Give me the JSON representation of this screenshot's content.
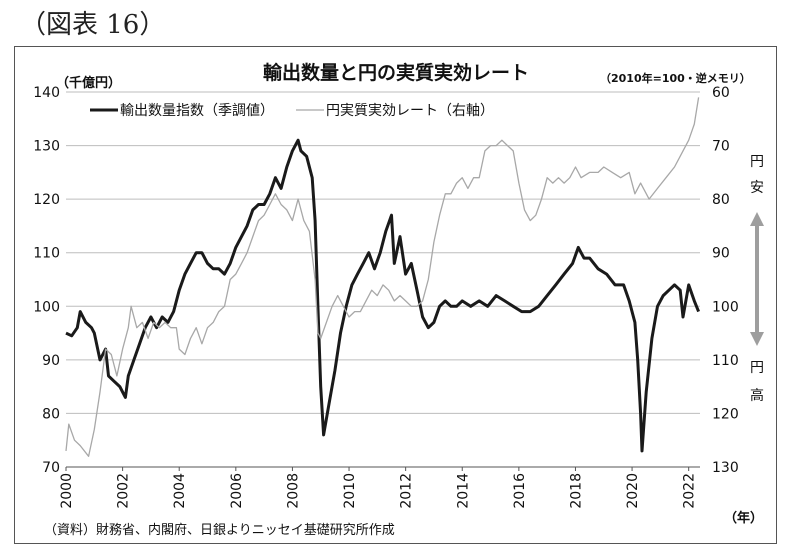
{
  "figure_label": "（図表 16）",
  "source_note": "（資料）財務省、内閣府、日銀よりニッセイ基礎研究所作成",
  "colors": {
    "exports": "#1a1a1a",
    "yen": "#a8a8a8",
    "grid": "#bdbdbd",
    "arrow": "#9e9e9e"
  },
  "chart_data": {
    "type": "line",
    "title": "輸出数量と円の実質実効レート",
    "left_axis_label": "（千億円）",
    "right_axis_label": "（2010年=100・逆メモリ）",
    "x_axis_label": "（年）",
    "xlim": [
      2000,
      2022.4
    ],
    "ylim_left": [
      70,
      140
    ],
    "ylim_right_inverted": [
      60,
      130
    ],
    "yticks_left": [
      "70",
      "80",
      "90",
      "100",
      "110",
      "120",
      "130",
      "140"
    ],
    "yticks_right": [
      "60",
      "70",
      "80",
      "90",
      "100",
      "110",
      "120",
      "130"
    ],
    "xticks": [
      "2000",
      "2002",
      "2004",
      "2006",
      "2008",
      "2010",
      "2012",
      "2014",
      "2016",
      "2018",
      "2020",
      "2022"
    ],
    "annotation_top": "円安",
    "annotation_bottom": "円高",
    "grid": true,
    "legend_placement": "top-left",
    "series": [
      {
        "name": "輸出数量指数（季調値）",
        "axis": "left",
        "points": [
          [
            2000.0,
            95
          ],
          [
            2000.2,
            94.5
          ],
          [
            2000.4,
            96
          ],
          [
            2000.5,
            99
          ],
          [
            2000.7,
            97
          ],
          [
            2000.9,
            96
          ],
          [
            2001.0,
            95
          ],
          [
            2001.2,
            90
          ],
          [
            2001.4,
            92
          ],
          [
            2001.5,
            87
          ],
          [
            2001.7,
            86
          ],
          [
            2001.9,
            85
          ],
          [
            2002.0,
            84
          ],
          [
            2002.1,
            83
          ],
          [
            2002.2,
            87
          ],
          [
            2002.4,
            90
          ],
          [
            2002.6,
            93
          ],
          [
            2002.8,
            96
          ],
          [
            2003.0,
            98
          ],
          [
            2003.2,
            96
          ],
          [
            2003.4,
            98
          ],
          [
            2003.6,
            97
          ],
          [
            2003.8,
            99
          ],
          [
            2004.0,
            103
          ],
          [
            2004.2,
            106
          ],
          [
            2004.4,
            108
          ],
          [
            2004.6,
            110
          ],
          [
            2004.8,
            110
          ],
          [
            2005.0,
            108
          ],
          [
            2005.2,
            107
          ],
          [
            2005.4,
            107
          ],
          [
            2005.6,
            106
          ],
          [
            2005.8,
            108
          ],
          [
            2006.0,
            111
          ],
          [
            2006.2,
            113
          ],
          [
            2006.4,
            115
          ],
          [
            2006.6,
            118
          ],
          [
            2006.8,
            119
          ],
          [
            2007.0,
            119
          ],
          [
            2007.2,
            121
          ],
          [
            2007.4,
            124
          ],
          [
            2007.6,
            122
          ],
          [
            2007.8,
            126
          ],
          [
            2008.0,
            129
          ],
          [
            2008.2,
            131
          ],
          [
            2008.3,
            129
          ],
          [
            2008.5,
            128
          ],
          [
            2008.7,
            124
          ],
          [
            2008.8,
            116
          ],
          [
            2008.9,
            100
          ],
          [
            2009.0,
            85
          ],
          [
            2009.1,
            76
          ],
          [
            2009.3,
            82
          ],
          [
            2009.5,
            88
          ],
          [
            2009.7,
            95
          ],
          [
            2009.9,
            100
          ],
          [
            2010.1,
            104
          ],
          [
            2010.3,
            106
          ],
          [
            2010.5,
            108
          ],
          [
            2010.7,
            110
          ],
          [
            2010.9,
            107
          ],
          [
            2011.1,
            110
          ],
          [
            2011.3,
            114
          ],
          [
            2011.5,
            117
          ],
          [
            2011.6,
            108
          ],
          [
            2011.8,
            113
          ],
          [
            2012.0,
            106
          ],
          [
            2012.2,
            108
          ],
          [
            2012.4,
            103
          ],
          [
            2012.6,
            98
          ],
          [
            2012.8,
            96
          ],
          [
            2013.0,
            97
          ],
          [
            2013.2,
            100
          ],
          [
            2013.4,
            101
          ],
          [
            2013.6,
            100
          ],
          [
            2013.8,
            100
          ],
          [
            2014.0,
            101
          ],
          [
            2014.3,
            100
          ],
          [
            2014.6,
            101
          ],
          [
            2014.9,
            100
          ],
          [
            2015.2,
            102
          ],
          [
            2015.5,
            101
          ],
          [
            2015.8,
            100
          ],
          [
            2016.1,
            99
          ],
          [
            2016.4,
            99
          ],
          [
            2016.7,
            100
          ],
          [
            2017.0,
            102
          ],
          [
            2017.3,
            104
          ],
          [
            2017.6,
            106
          ],
          [
            2017.9,
            108
          ],
          [
            2018.1,
            111
          ],
          [
            2018.3,
            109
          ],
          [
            2018.5,
            109
          ],
          [
            2018.8,
            107
          ],
          [
            2019.1,
            106
          ],
          [
            2019.4,
            104
          ],
          [
            2019.7,
            104
          ],
          [
            2019.9,
            101
          ],
          [
            2020.1,
            97
          ],
          [
            2020.2,
            90
          ],
          [
            2020.3,
            80
          ],
          [
            2020.35,
            73
          ],
          [
            2020.5,
            84
          ],
          [
            2020.7,
            94
          ],
          [
            2020.9,
            100
          ],
          [
            2021.1,
            102
          ],
          [
            2021.3,
            103
          ],
          [
            2021.5,
            104
          ],
          [
            2021.7,
            103
          ],
          [
            2021.8,
            98
          ],
          [
            2022.0,
            104
          ],
          [
            2022.2,
            101
          ],
          [
            2022.35,
            99
          ]
        ]
      },
      {
        "name": "円実質実効レート（右軸）",
        "axis": "right",
        "points": [
          [
            2000.0,
            127
          ],
          [
            2000.1,
            122
          ],
          [
            2000.3,
            125
          ],
          [
            2000.5,
            126
          ],
          [
            2000.8,
            128
          ],
          [
            2001.0,
            123
          ],
          [
            2001.2,
            116
          ],
          [
            2001.4,
            108
          ],
          [
            2001.6,
            109
          ],
          [
            2001.8,
            113
          ],
          [
            2002.0,
            108
          ],
          [
            2002.2,
            104
          ],
          [
            2002.3,
            100
          ],
          [
            2002.5,
            104
          ],
          [
            2002.7,
            103
          ],
          [
            2002.9,
            106
          ],
          [
            2003.1,
            103
          ],
          [
            2003.3,
            104
          ],
          [
            2003.5,
            103
          ],
          [
            2003.7,
            104
          ],
          [
            2003.9,
            104
          ],
          [
            2004.0,
            108
          ],
          [
            2004.2,
            109
          ],
          [
            2004.4,
            106
          ],
          [
            2004.6,
            104
          ],
          [
            2004.8,
            107
          ],
          [
            2005.0,
            104
          ],
          [
            2005.2,
            103
          ],
          [
            2005.4,
            101
          ],
          [
            2005.6,
            100
          ],
          [
            2005.8,
            95
          ],
          [
            2006.0,
            94
          ],
          [
            2006.2,
            92
          ],
          [
            2006.4,
            90
          ],
          [
            2006.6,
            87
          ],
          [
            2006.8,
            84
          ],
          [
            2007.0,
            83
          ],
          [
            2007.2,
            81
          ],
          [
            2007.4,
            79
          ],
          [
            2007.6,
            81
          ],
          [
            2007.8,
            82
          ],
          [
            2008.0,
            84
          ],
          [
            2008.2,
            80
          ],
          [
            2008.4,
            84
          ],
          [
            2008.6,
            86
          ],
          [
            2008.8,
            95
          ],
          [
            2008.9,
            105
          ],
          [
            2009.0,
            106
          ],
          [
            2009.2,
            103
          ],
          [
            2009.4,
            100
          ],
          [
            2009.6,
            98
          ],
          [
            2009.8,
            100
          ],
          [
            2010.0,
            102
          ],
          [
            2010.2,
            101
          ],
          [
            2010.4,
            101
          ],
          [
            2010.6,
            99
          ],
          [
            2010.8,
            97
          ],
          [
            2011.0,
            98
          ],
          [
            2011.2,
            96
          ],
          [
            2011.4,
            97
          ],
          [
            2011.6,
            99
          ],
          [
            2011.8,
            98
          ],
          [
            2012.0,
            99
          ],
          [
            2012.2,
            100
          ],
          [
            2012.4,
            100
          ],
          [
            2012.6,
            99
          ],
          [
            2012.8,
            95
          ],
          [
            2013.0,
            88
          ],
          [
            2013.2,
            83
          ],
          [
            2013.4,
            79
          ],
          [
            2013.6,
            79
          ],
          [
            2013.8,
            77
          ],
          [
            2014.0,
            76
          ],
          [
            2014.2,
            78
          ],
          [
            2014.4,
            76
          ],
          [
            2014.6,
            76
          ],
          [
            2014.8,
            71
          ],
          [
            2015.0,
            70
          ],
          [
            2015.2,
            70
          ],
          [
            2015.4,
            69
          ],
          [
            2015.6,
            70
          ],
          [
            2015.8,
            71
          ],
          [
            2016.0,
            77
          ],
          [
            2016.2,
            82
          ],
          [
            2016.4,
            84
          ],
          [
            2016.6,
            83
          ],
          [
            2016.8,
            80
          ],
          [
            2017.0,
            76
          ],
          [
            2017.2,
            77
          ],
          [
            2017.4,
            76
          ],
          [
            2017.6,
            77
          ],
          [
            2017.8,
            76
          ],
          [
            2018.0,
            74
          ],
          [
            2018.2,
            76
          ],
          [
            2018.5,
            75
          ],
          [
            2018.8,
            75
          ],
          [
            2019.0,
            74
          ],
          [
            2019.3,
            75
          ],
          [
            2019.6,
            76
          ],
          [
            2019.9,
            75
          ],
          [
            2020.1,
            79
          ],
          [
            2020.3,
            77
          ],
          [
            2020.6,
            80
          ],
          [
            2020.9,
            78
          ],
          [
            2021.2,
            76
          ],
          [
            2021.5,
            74
          ],
          [
            2021.8,
            71
          ],
          [
            2022.0,
            69
          ],
          [
            2022.2,
            66
          ],
          [
            2022.35,
            61
          ]
        ]
      }
    ]
  }
}
